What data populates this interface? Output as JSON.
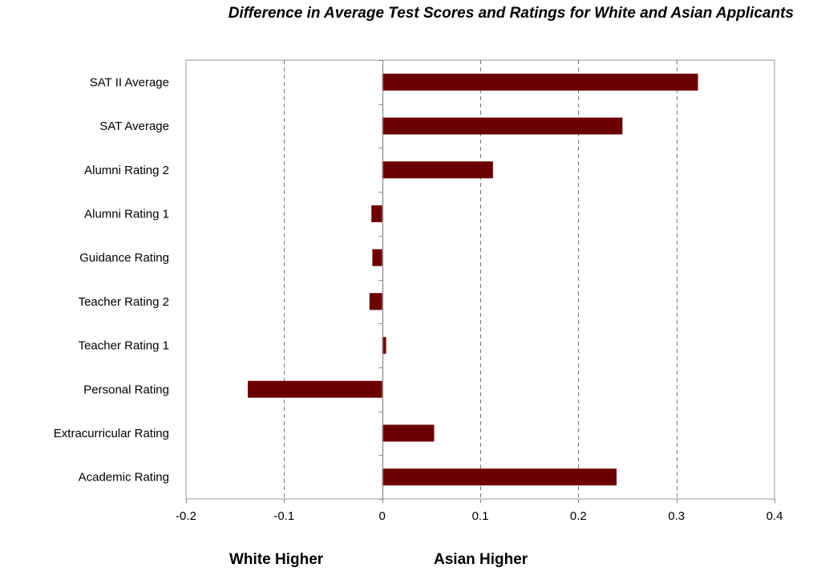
{
  "chart_data": {
    "type": "bar",
    "orientation": "horizontal",
    "title": "Difference in Average Test Scores and Ratings for White and Asian Applicants",
    "categories": [
      "SAT II Average",
      "SAT Average",
      "Alumni Rating 2",
      "Alumni Rating 1",
      "Guidance Rating",
      "Teacher Rating 2",
      "Teacher Rating 1",
      "Personal Rating",
      "Extracurricular Rating",
      "Academic Rating"
    ],
    "values": [
      0.322,
      0.245,
      0.113,
      -0.011,
      -0.01,
      -0.013,
      0.004,
      -0.137,
      0.053,
      0.239
    ],
    "xlim": [
      -0.2,
      0.4
    ],
    "xticks": [
      -0.2,
      -0.1,
      0,
      0.1,
      0.2,
      0.3,
      0.4
    ],
    "xtick_labels": [
      "-0.2",
      "-0.1",
      "0",
      "0.1",
      "0.2",
      "0.3",
      "0.4"
    ],
    "grid": "vertical dashed",
    "bar_color": "#6b0000",
    "annotations": {
      "left": "White Higher",
      "right": "Asian Higher"
    }
  }
}
